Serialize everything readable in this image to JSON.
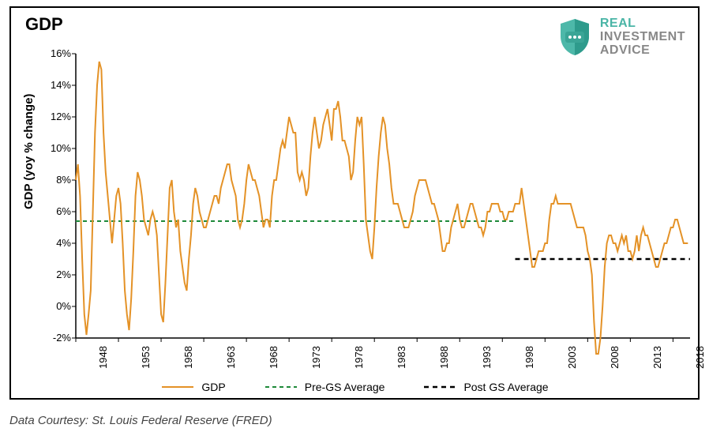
{
  "chart": {
    "type": "line",
    "title": "GDP",
    "yaxis_label": "GDP (yoy % change)",
    "background_color": "#ffffff",
    "border_color": "#000000",
    "axis_color": "#000000",
    "tick_fontsize": 13,
    "label_fontsize": 15,
    "title_fontsize": 22,
    "x": {
      "min": 1948,
      "max": 2020,
      "ticks": [
        1948,
        1953,
        1958,
        1963,
        1968,
        1973,
        1978,
        1983,
        1988,
        1993,
        1998,
        2003,
        2008,
        2013,
        2018
      ]
    },
    "y": {
      "min": -2,
      "max": 16,
      "tick_step": 2,
      "suffix": "%",
      "ticks": [
        -2,
        0,
        2,
        4,
        6,
        8,
        10,
        12,
        14,
        16
      ]
    },
    "series": {
      "gdp": {
        "label": "GDP",
        "color": "#e49227",
        "width": 2,
        "dash": "none",
        "data": [
          [
            1948.0,
            8.0
          ],
          [
            1948.25,
            9.0
          ],
          [
            1948.5,
            7.0
          ],
          [
            1948.75,
            3.0
          ],
          [
            1949.0,
            -0.5
          ],
          [
            1949.25,
            -1.8
          ],
          [
            1949.5,
            -0.5
          ],
          [
            1949.75,
            1.0
          ],
          [
            1950.0,
            6.0
          ],
          [
            1950.25,
            11.0
          ],
          [
            1950.5,
            14.0
          ],
          [
            1950.75,
            15.5
          ],
          [
            1951.0,
            15.0
          ],
          [
            1951.25,
            11.0
          ],
          [
            1951.5,
            8.5
          ],
          [
            1951.75,
            7.0
          ],
          [
            1952.0,
            5.5
          ],
          [
            1952.25,
            4.0
          ],
          [
            1952.5,
            5.5
          ],
          [
            1952.75,
            7.0
          ],
          [
            1953.0,
            7.5
          ],
          [
            1953.25,
            6.5
          ],
          [
            1953.5,
            4.0
          ],
          [
            1953.75,
            1.0
          ],
          [
            1954.0,
            -0.5
          ],
          [
            1954.25,
            -1.5
          ],
          [
            1954.5,
            0.5
          ],
          [
            1954.75,
            3.5
          ],
          [
            1955.0,
            7.0
          ],
          [
            1955.25,
            8.5
          ],
          [
            1955.5,
            8.0
          ],
          [
            1955.75,
            7.0
          ],
          [
            1956.0,
            5.5
          ],
          [
            1956.25,
            5.0
          ],
          [
            1956.5,
            4.5
          ],
          [
            1956.75,
            5.5
          ],
          [
            1957.0,
            6.0
          ],
          [
            1957.25,
            5.5
          ],
          [
            1957.5,
            4.5
          ],
          [
            1957.75,
            2.0
          ],
          [
            1958.0,
            -0.5
          ],
          [
            1958.25,
            -1.0
          ],
          [
            1958.5,
            1.5
          ],
          [
            1958.75,
            4.5
          ],
          [
            1959.0,
            7.5
          ],
          [
            1959.25,
            8.0
          ],
          [
            1959.5,
            6.0
          ],
          [
            1959.75,
            5.0
          ],
          [
            1960.0,
            5.5
          ],
          [
            1960.25,
            3.5
          ],
          [
            1960.5,
            2.5
          ],
          [
            1960.75,
            1.5
          ],
          [
            1961.0,
            1.0
          ],
          [
            1961.25,
            3.0
          ],
          [
            1961.5,
            4.5
          ],
          [
            1961.75,
            6.5
          ],
          [
            1962.0,
            7.5
          ],
          [
            1962.25,
            7.0
          ],
          [
            1962.5,
            6.0
          ],
          [
            1962.75,
            5.5
          ],
          [
            1963.0,
            5.0
          ],
          [
            1963.25,
            5.0
          ],
          [
            1963.5,
            5.5
          ],
          [
            1963.75,
            6.0
          ],
          [
            1964.0,
            6.5
          ],
          [
            1964.25,
            7.0
          ],
          [
            1964.5,
            7.0
          ],
          [
            1964.75,
            6.5
          ],
          [
            1965.0,
            7.5
          ],
          [
            1965.25,
            8.0
          ],
          [
            1965.5,
            8.5
          ],
          [
            1965.75,
            9.0
          ],
          [
            1966.0,
            9.0
          ],
          [
            1966.25,
            8.0
          ],
          [
            1966.5,
            7.5
          ],
          [
            1966.75,
            7.0
          ],
          [
            1967.0,
            5.5
          ],
          [
            1967.25,
            5.0
          ],
          [
            1967.5,
            5.5
          ],
          [
            1967.75,
            6.5
          ],
          [
            1968.0,
            8.0
          ],
          [
            1968.25,
            9.0
          ],
          [
            1968.5,
            8.5
          ],
          [
            1968.75,
            8.0
          ],
          [
            1969.0,
            8.0
          ],
          [
            1969.25,
            7.5
          ],
          [
            1969.5,
            7.0
          ],
          [
            1969.75,
            6.0
          ],
          [
            1970.0,
            5.0
          ],
          [
            1970.25,
            5.5
          ],
          [
            1970.5,
            5.5
          ],
          [
            1970.75,
            5.0
          ],
          [
            1971.0,
            7.0
          ],
          [
            1971.25,
            8.0
          ],
          [
            1971.5,
            8.0
          ],
          [
            1971.75,
            9.0
          ],
          [
            1972.0,
            10.0
          ],
          [
            1972.25,
            10.5
          ],
          [
            1972.5,
            10.0
          ],
          [
            1972.75,
            11.0
          ],
          [
            1973.0,
            12.0
          ],
          [
            1973.25,
            11.5
          ],
          [
            1973.5,
            11.0
          ],
          [
            1973.75,
            11.0
          ],
          [
            1974.0,
            8.5
          ],
          [
            1974.25,
            8.0
          ],
          [
            1974.5,
            8.5
          ],
          [
            1974.75,
            8.0
          ],
          [
            1975.0,
            7.0
          ],
          [
            1975.25,
            7.5
          ],
          [
            1975.5,
            9.5
          ],
          [
            1975.75,
            11.0
          ],
          [
            1976.0,
            12.0
          ],
          [
            1976.25,
            11.0
          ],
          [
            1976.5,
            10.0
          ],
          [
            1976.75,
            10.5
          ],
          [
            1977.0,
            11.5
          ],
          [
            1977.25,
            12.0
          ],
          [
            1977.5,
            12.5
          ],
          [
            1977.75,
            11.5
          ],
          [
            1978.0,
            10.5
          ],
          [
            1978.25,
            12.5
          ],
          [
            1978.5,
            12.5
          ],
          [
            1978.75,
            13.0
          ],
          [
            1979.0,
            12.0
          ],
          [
            1979.25,
            10.5
          ],
          [
            1979.5,
            10.5
          ],
          [
            1979.75,
            10.0
          ],
          [
            1980.0,
            9.5
          ],
          [
            1980.25,
            8.0
          ],
          [
            1980.5,
            8.5
          ],
          [
            1980.75,
            10.5
          ],
          [
            1981.0,
            12.0
          ],
          [
            1981.25,
            11.5
          ],
          [
            1981.5,
            12.0
          ],
          [
            1981.75,
            9.0
          ],
          [
            1982.0,
            5.5
          ],
          [
            1982.25,
            4.5
          ],
          [
            1982.5,
            3.5
          ],
          [
            1982.75,
            3.0
          ],
          [
            1983.0,
            5.0
          ],
          [
            1983.25,
            7.5
          ],
          [
            1983.5,
            9.5
          ],
          [
            1983.75,
            11.0
          ],
          [
            1984.0,
            12.0
          ],
          [
            1984.25,
            11.5
          ],
          [
            1984.5,
            10.0
          ],
          [
            1984.75,
            9.0
          ],
          [
            1985.0,
            7.5
          ],
          [
            1985.25,
            6.5
          ],
          [
            1985.5,
            6.5
          ],
          [
            1985.75,
            6.5
          ],
          [
            1986.0,
            6.0
          ],
          [
            1986.25,
            5.5
          ],
          [
            1986.5,
            5.0
          ],
          [
            1986.75,
            5.0
          ],
          [
            1987.0,
            5.0
          ],
          [
            1987.25,
            5.5
          ],
          [
            1987.5,
            6.0
          ],
          [
            1987.75,
            7.0
          ],
          [
            1988.0,
            7.5
          ],
          [
            1988.25,
            8.0
          ],
          [
            1988.5,
            8.0
          ],
          [
            1988.75,
            8.0
          ],
          [
            1989.0,
            8.0
          ],
          [
            1989.25,
            7.5
          ],
          [
            1989.5,
            7.0
          ],
          [
            1989.75,
            6.5
          ],
          [
            1990.0,
            6.5
          ],
          [
            1990.25,
            6.0
          ],
          [
            1990.5,
            5.5
          ],
          [
            1990.75,
            4.5
          ],
          [
            1991.0,
            3.5
          ],
          [
            1991.25,
            3.5
          ],
          [
            1991.5,
            4.0
          ],
          [
            1991.75,
            4.0
          ],
          [
            1992.0,
            5.0
          ],
          [
            1992.25,
            5.5
          ],
          [
            1992.5,
            6.0
          ],
          [
            1992.75,
            6.5
          ],
          [
            1993.0,
            5.5
          ],
          [
            1993.25,
            5.0
          ],
          [
            1993.5,
            5.0
          ],
          [
            1993.75,
            5.5
          ],
          [
            1994.0,
            6.0
          ],
          [
            1994.25,
            6.5
          ],
          [
            1994.5,
            6.5
          ],
          [
            1994.75,
            6.0
          ],
          [
            1995.0,
            5.5
          ],
          [
            1995.25,
            5.0
          ],
          [
            1995.5,
            5.0
          ],
          [
            1995.75,
            4.5
          ],
          [
            1996.0,
            5.0
          ],
          [
            1996.25,
            6.0
          ],
          [
            1996.5,
            6.0
          ],
          [
            1996.75,
            6.5
          ],
          [
            1997.0,
            6.5
          ],
          [
            1997.25,
            6.5
          ],
          [
            1997.5,
            6.5
          ],
          [
            1997.75,
            6.0
          ],
          [
            1998.0,
            6.0
          ],
          [
            1998.25,
            5.5
          ],
          [
            1998.5,
            5.5
          ],
          [
            1998.75,
            6.0
          ],
          [
            1999.0,
            6.0
          ],
          [
            1999.25,
            6.0
          ],
          [
            1999.5,
            6.5
          ],
          [
            1999.75,
            6.5
          ],
          [
            2000.0,
            6.5
          ],
          [
            2000.25,
            7.5
          ],
          [
            2000.5,
            6.5
          ],
          [
            2000.75,
            5.5
          ],
          [
            2001.0,
            4.5
          ],
          [
            2001.25,
            3.5
          ],
          [
            2001.5,
            2.5
          ],
          [
            2001.75,
            2.5
          ],
          [
            2002.0,
            3.0
          ],
          [
            2002.25,
            3.5
          ],
          [
            2002.5,
            3.5
          ],
          [
            2002.75,
            3.5
          ],
          [
            2003.0,
            4.0
          ],
          [
            2003.25,
            4.0
          ],
          [
            2003.5,
            5.5
          ],
          [
            2003.75,
            6.5
          ],
          [
            2004.0,
            6.5
          ],
          [
            2004.25,
            7.0
          ],
          [
            2004.5,
            6.5
          ],
          [
            2004.75,
            6.5
          ],
          [
            2005.0,
            6.5
          ],
          [
            2005.25,
            6.5
          ],
          [
            2005.5,
            6.5
          ],
          [
            2005.75,
            6.5
          ],
          [
            2006.0,
            6.5
          ],
          [
            2006.25,
            6.0
          ],
          [
            2006.5,
            5.5
          ],
          [
            2006.75,
            5.0
          ],
          [
            2007.0,
            5.0
          ],
          [
            2007.25,
            5.0
          ],
          [
            2007.5,
            5.0
          ],
          [
            2007.75,
            4.5
          ],
          [
            2008.0,
            3.5
          ],
          [
            2008.25,
            3.0
          ],
          [
            2008.5,
            2.0
          ],
          [
            2008.75,
            -1.0
          ],
          [
            2009.0,
            -3.0
          ],
          [
            2009.25,
            -3.0
          ],
          [
            2009.5,
            -2.0
          ],
          [
            2009.75,
            0.0
          ],
          [
            2010.0,
            2.5
          ],
          [
            2010.25,
            4.0
          ],
          [
            2010.5,
            4.5
          ],
          [
            2010.75,
            4.5
          ],
          [
            2011.0,
            4.0
          ],
          [
            2011.25,
            4.0
          ],
          [
            2011.5,
            3.5
          ],
          [
            2011.75,
            4.0
          ],
          [
            2012.0,
            4.5
          ],
          [
            2012.25,
            4.0
          ],
          [
            2012.5,
            4.5
          ],
          [
            2012.75,
            3.5
          ],
          [
            2013.0,
            3.5
          ],
          [
            2013.25,
            3.0
          ],
          [
            2013.5,
            3.5
          ],
          [
            2013.75,
            4.5
          ],
          [
            2014.0,
            3.5
          ],
          [
            2014.25,
            4.5
          ],
          [
            2014.5,
            5.0
          ],
          [
            2014.75,
            4.5
          ],
          [
            2015.0,
            4.5
          ],
          [
            2015.25,
            4.0
          ],
          [
            2015.5,
            3.5
          ],
          [
            2015.75,
            3.0
          ],
          [
            2016.0,
            2.5
          ],
          [
            2016.25,
            2.5
          ],
          [
            2016.5,
            3.0
          ],
          [
            2016.75,
            3.5
          ],
          [
            2017.0,
            4.0
          ],
          [
            2017.25,
            4.0
          ],
          [
            2017.5,
            4.5
          ],
          [
            2017.75,
            5.0
          ],
          [
            2018.0,
            5.0
          ],
          [
            2018.25,
            5.5
          ],
          [
            2018.5,
            5.5
          ],
          [
            2018.75,
            5.0
          ],
          [
            2019.0,
            4.5
          ],
          [
            2019.25,
            4.0
          ],
          [
            2019.5,
            4.0
          ],
          [
            2019.75,
            4.0
          ]
        ]
      },
      "pre_gs": {
        "label": "Pre-GS Average",
        "color": "#1e8a3a",
        "width": 2,
        "dash": "5,4",
        "data": [
          [
            1948,
            5.4
          ],
          [
            1999.5,
            5.4
          ]
        ]
      },
      "post_gs": {
        "label": "Post GS Average",
        "color": "#000000",
        "width": 2.5,
        "dash": "6,5",
        "data": [
          [
            1999.5,
            3.0
          ],
          [
            2020,
            3.0
          ]
        ]
      }
    }
  },
  "legend": {
    "items": [
      {
        "key": "gdp",
        "label": "GDP"
      },
      {
        "key": "pre_gs",
        "label": "Pre-GS Average"
      },
      {
        "key": "post_gs",
        "label": "Post GS Average"
      }
    ]
  },
  "logo": {
    "line1": "REAL",
    "line2": "INVESTMENT",
    "line3": "ADVICE",
    "shield_color_top": "#4db8a9",
    "shield_color_bottom": "#2e9b8c",
    "dot_color": "#ffffff"
  },
  "credit": "Data Courtesy: St. Louis Federal Reserve (FRED)"
}
